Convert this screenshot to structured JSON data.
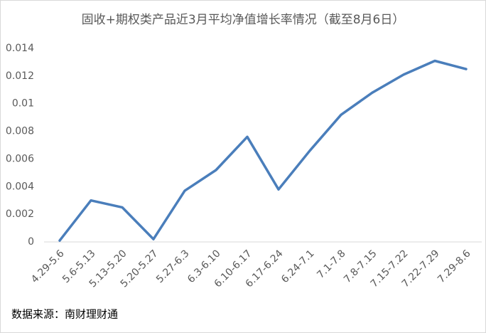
{
  "chart_data": {
    "type": "line",
    "title": "固收+期权类产品近3月平均净值增长率情况（截至8月6日）",
    "categories": [
      "4.29-5.6",
      "5.6-5.13",
      "5.13-5.20",
      "5.20-5.27",
      "5.27-6.3",
      "6.3-6.10",
      "6.10-6.17",
      "6.17-6.24",
      "6.24-7.1",
      "7.1-7.8",
      "7.8-7.15",
      "7.15-7.22",
      "7.22-7.29",
      "7.29-8.6"
    ],
    "values": [
      0.0001,
      0.003,
      0.0025,
      0.0002,
      0.0037,
      0.0052,
      0.0076,
      0.0038,
      0.0066,
      0.0092,
      0.0108,
      0.0121,
      0.0131,
      0.0125
    ],
    "color": "#4a7ebb",
    "ylim": [
      0,
      0.014
    ],
    "yticks": [
      0,
      0.002,
      0.004,
      0.006,
      0.008,
      0.01,
      0.012,
      0.014
    ],
    "grid": false,
    "source": "数据来源：南财理财通"
  }
}
